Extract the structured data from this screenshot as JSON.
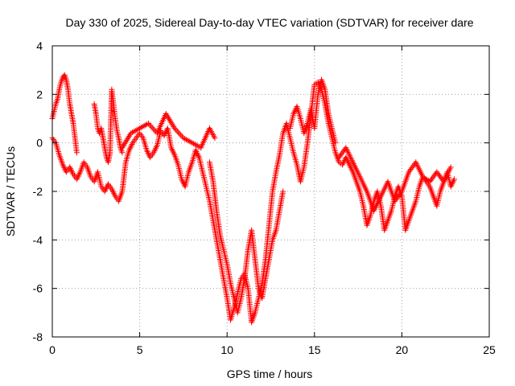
{
  "chart_data": {
    "type": "scatter",
    "title": "Day 330 of 2025, Sidereal Day-to-day VTEC variation (SDTVAR) for receiver dare",
    "xlabel": "GPS time / hours",
    "ylabel": "SDTVAR / TECUs",
    "xlim": [
      0,
      25
    ],
    "ylim": [
      -8,
      4
    ],
    "xticks": [
      0,
      5,
      10,
      15,
      20,
      25
    ],
    "yticks": [
      -8,
      -6,
      -4,
      -2,
      0,
      2,
      4
    ],
    "xtick_labels": [
      "0",
      "5",
      "10",
      "15",
      "20",
      "25"
    ],
    "ytick_labels": [
      "-8",
      "-6",
      "-4",
      "-2",
      "0",
      "2",
      "4"
    ],
    "grid": true,
    "marker": "+",
    "color": "#ff0000",
    "series": [
      {
        "name": "SDTVAR",
        "traces": [
          {
            "x": [
              0.0,
              0.2,
              0.4,
              0.6,
              0.8,
              1.0,
              1.2,
              1.4,
              1.6,
              1.8,
              2.0,
              2.2,
              2.4,
              2.6,
              2.8,
              3.0,
              3.2,
              3.4,
              3.6,
              3.8,
              4.0,
              4.2,
              4.4,
              4.6,
              4.8,
              5.0,
              5.2,
              5.4,
              5.6,
              5.8,
              6.0,
              6.2,
              6.4,
              6.6,
              6.8,
              7.0,
              7.2,
              7.4,
              7.6,
              7.8,
              8.0,
              8.2,
              8.4,
              8.6,
              8.8,
              9.0,
              9.2,
              9.4,
              9.6,
              9.8,
              10.0,
              10.2,
              10.4,
              10.6,
              10.8,
              11.0,
              11.2,
              11.4,
              11.6,
              11.8,
              12.0,
              12.2,
              12.4,
              12.6,
              12.8,
              13.0,
              13.2,
              13.4,
              13.6,
              13.8,
              14.0,
              14.2,
              14.4,
              14.6,
              14.8,
              15.0,
              15.2,
              15.4,
              15.6,
              15.8,
              16.0,
              16.2,
              16.4,
              16.6,
              16.8,
              17.0,
              17.2,
              17.4,
              17.6,
              17.8,
              18.0,
              18.2,
              18.4,
              18.6,
              18.8,
              19.0,
              19.2,
              19.4,
              19.6,
              19.8,
              20.0,
              20.2,
              20.4,
              20.6,
              20.8,
              21.0,
              21.2,
              21.4,
              21.6,
              21.8,
              22.0,
              22.2,
              22.4,
              22.6,
              22.8,
              23.0
            ],
            "y": [
              0.2,
              0.0,
              -0.5,
              -0.9,
              -1.2,
              -1.0,
              -1.3,
              -1.5,
              -1.2,
              -0.8,
              -1.0,
              -1.4,
              -1.6,
              -1.2,
              -1.8,
              -2.0,
              -1.7,
              -1.9,
              -2.2,
              -2.4,
              -2.0,
              -0.8,
              -0.3,
              0.0,
              0.2,
              0.4,
              0.2,
              -0.3,
              -0.6,
              -0.4,
              -0.1,
              0.5,
              0.3,
              0.6,
              -0.2,
              -0.5,
              -0.9,
              -1.5,
              -1.8,
              -1.2,
              -0.8,
              -0.3,
              -0.6,
              -1.2,
              -1.8,
              -2.4,
              -3.2,
              -4.0,
              -4.8,
              -5.6,
              -6.4,
              -7.3,
              -6.8,
              -6.2,
              -5.6,
              -5.4,
              -6.0,
              -7.4,
              -7.0,
              -6.4,
              -5.8,
              -4.8,
              -3.4,
              -2.0,
              -1.2,
              -0.5,
              0.4,
              0.8,
              0.2,
              -0.4,
              -0.9,
              -1.6,
              -1.0,
              0.0,
              1.2,
              2.4,
              2.5,
              2.2,
              1.6,
              0.8,
              0.2,
              -0.4,
              -0.8,
              -0.9,
              -0.6,
              -0.9,
              -1.2,
              -1.6,
              -2.0,
              -2.6,
              -3.4,
              -3.0,
              -2.4,
              -2.0,
              -2.6,
              -3.6,
              -3.2,
              -2.8,
              -2.2,
              -1.8,
              -2.2,
              -3.6,
              -3.2,
              -2.8,
              -2.4,
              -1.8,
              -1.4,
              -1.6,
              -1.8,
              -2.2,
              -2.6,
              -2.0,
              -1.6,
              -1.2,
              -1.8,
              -1.5
            ]
          },
          {
            "x": [
              0.0,
              0.1,
              0.2,
              0.3,
              0.4,
              0.5,
              0.6,
              0.7,
              0.8,
              0.9,
              1.0,
              1.1,
              1.2,
              1.3,
              1.4
            ],
            "y": [
              1.0,
              1.3,
              1.6,
              1.8,
              2.2,
              2.5,
              2.7,
              2.8,
              2.6,
              2.2,
              1.6,
              1.2,
              0.8,
              0.2,
              -0.4
            ]
          },
          {
            "x": [
              2.4,
              2.5,
              2.6,
              2.7,
              2.8,
              2.9,
              3.0,
              3.1,
              3.2,
              3.3,
              3.4,
              3.5,
              3.6,
              3.7,
              3.8,
              3.9,
              4.0
            ],
            "y": [
              1.6,
              1.2,
              0.6,
              0.4,
              0.6,
              0.2,
              -0.2,
              -0.6,
              -0.8,
              -0.4,
              2.2,
              1.6,
              1.0,
              0.5,
              0.2,
              -0.2,
              -0.4
            ]
          },
          {
            "x": [
              4.0,
              4.5,
              5.0,
              5.5,
              6.0,
              6.5,
              7.0,
              7.5,
              8.0,
              8.5,
              9.0,
              9.3
            ],
            "y": [
              -0.2,
              0.4,
              0.6,
              0.8,
              0.4,
              1.2,
              0.6,
              0.2,
              0.0,
              -0.2,
              0.6,
              0.2
            ]
          },
          {
            "x": [
              9.0,
              9.2,
              9.4,
              9.6,
              9.8,
              10.0,
              10.2,
              10.4,
              10.6,
              10.8,
              11.0,
              11.2,
              11.4,
              11.6,
              11.8,
              12.0,
              12.2,
              12.4,
              12.6,
              12.8,
              13.0,
              13.2
            ],
            "y": [
              -0.8,
              -1.6,
              -2.8,
              -3.8,
              -4.4,
              -5.0,
              -5.8,
              -6.4,
              -7.0,
              -6.4,
              -5.6,
              -4.4,
              -3.6,
              -4.8,
              -6.0,
              -6.4,
              -5.6,
              -4.8,
              -4.0,
              -3.6,
              -2.8,
              -2.0
            ]
          },
          {
            "x": [
              13.6,
              13.8,
              14.0,
              14.2,
              14.4,
              14.6,
              14.8,
              15.0,
              15.2,
              15.4,
              15.6,
              15.8,
              16.0,
              16.2
            ],
            "y": [
              0.6,
              1.2,
              1.5,
              1.0,
              0.4,
              0.8,
              1.4,
              0.6,
              2.0,
              2.6,
              2.2,
              1.2,
              0.6,
              0.0
            ]
          },
          {
            "x": [
              16.4,
              16.8,
              17.2,
              17.6,
              18.0,
              18.4,
              18.8,
              19.2,
              19.6,
              20.0,
              20.4,
              20.8,
              21.2,
              21.6,
              22.0,
              22.4,
              22.8
            ],
            "y": [
              -0.6,
              -0.2,
              -0.8,
              -1.4,
              -2.0,
              -2.8,
              -2.2,
              -1.6,
              -2.4,
              -2.0,
              -1.2,
              -0.8,
              -1.4,
              -1.6,
              -1.2,
              -1.6,
              -1.0
            ]
          }
        ]
      }
    ]
  }
}
